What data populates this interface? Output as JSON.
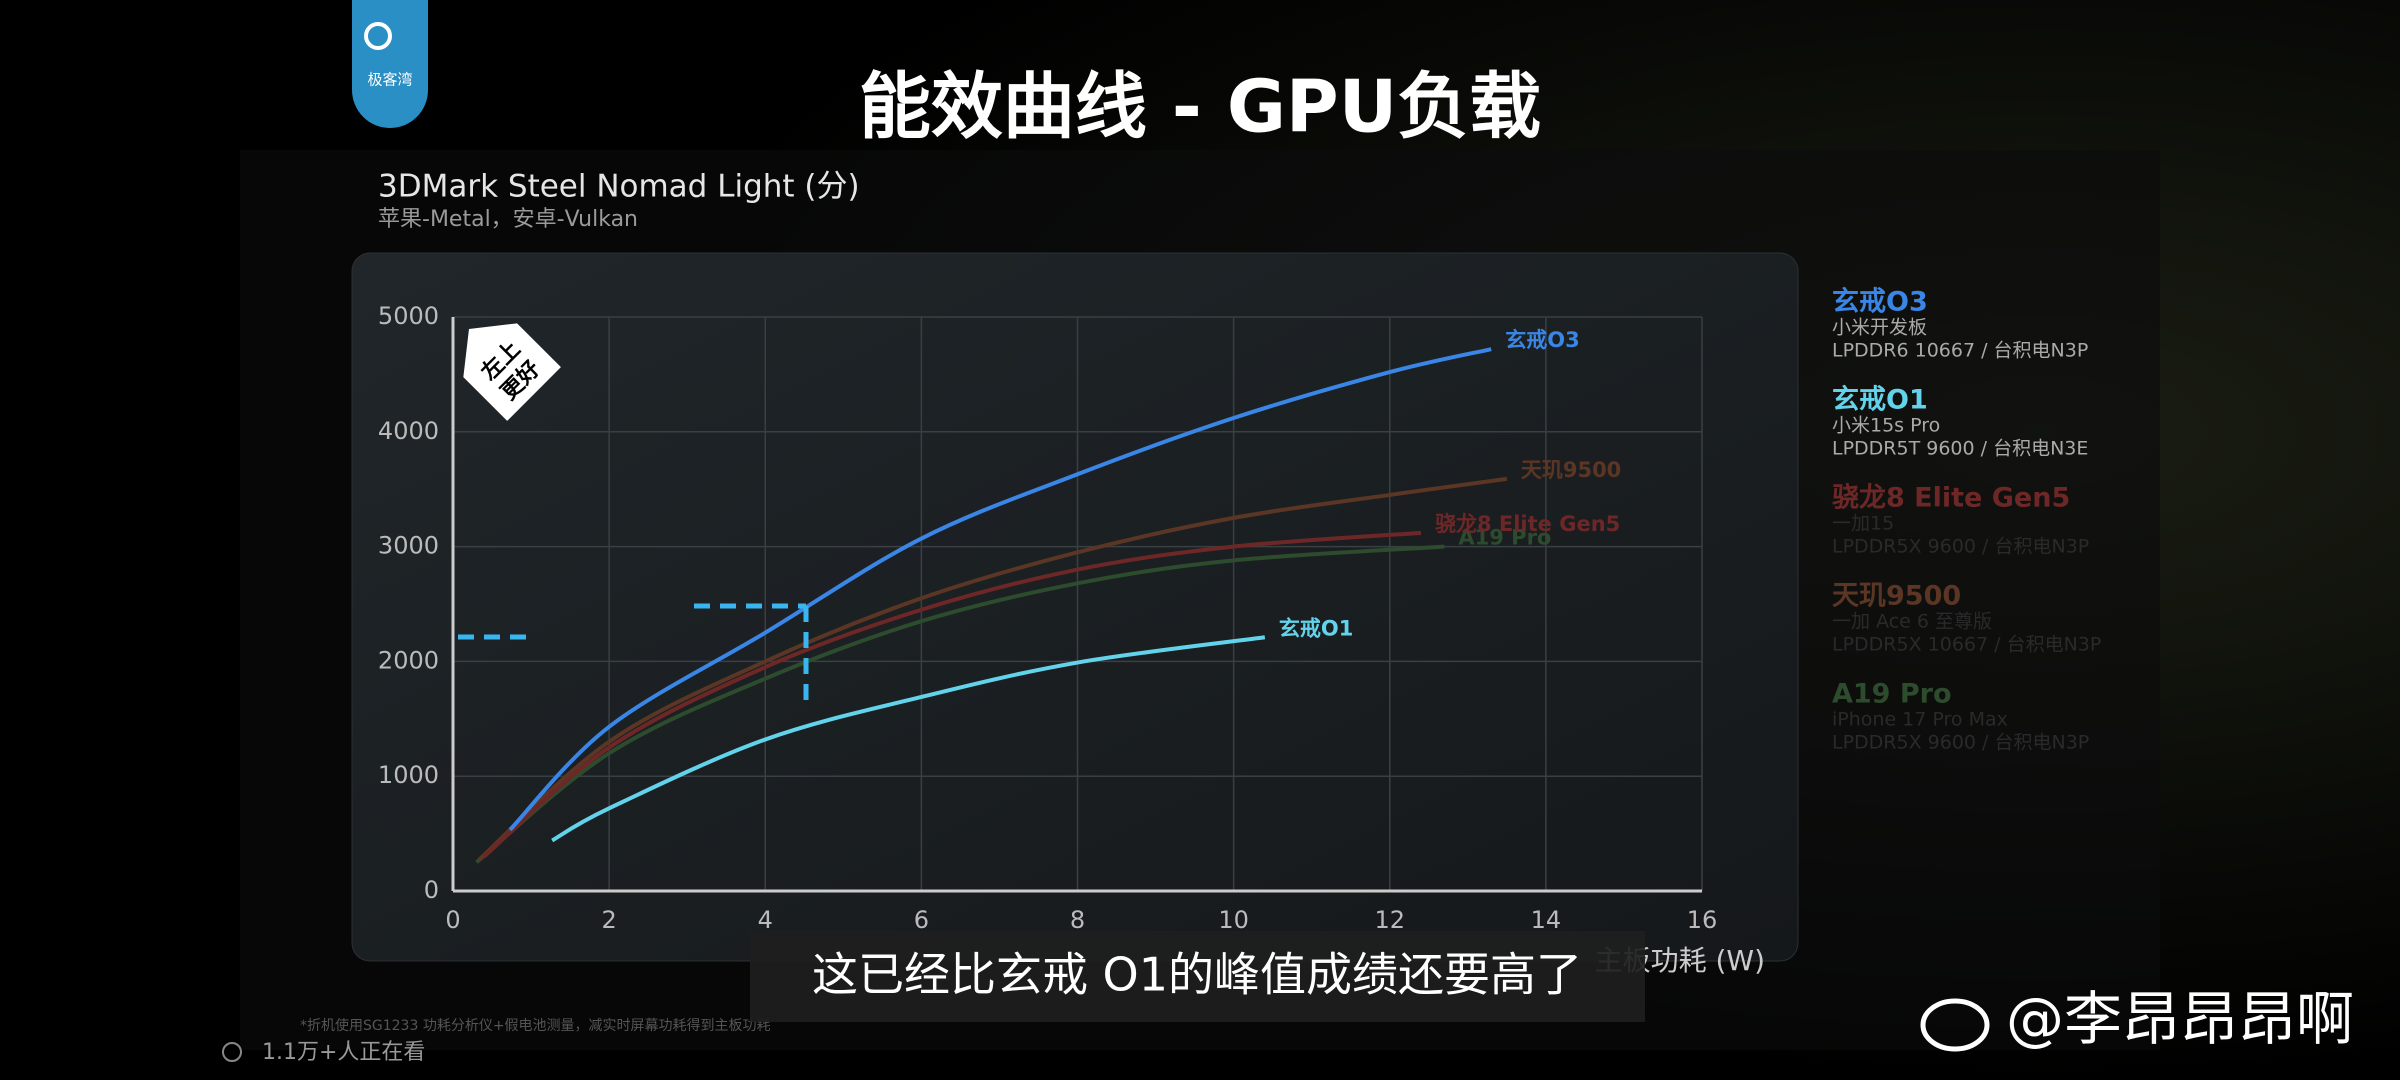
{
  "header": {
    "logo": "极客湾",
    "title": "能效曲线 - GPU负载"
  },
  "chart_data": {
    "type": "line",
    "title": "3DMark Steel Nomad Light (分)",
    "subtitle": "苹果-Metal，安卓-Vulkan",
    "xlabel": "主板功耗 (W)",
    "badge": [
      "左上",
      "更好"
    ],
    "xlim": [
      0,
      16
    ],
    "xticks": [
      0,
      2,
      4,
      6,
      8,
      10,
      12,
      14,
      16
    ],
    "ylim": [
      0,
      5000
    ],
    "yticks": [
      0,
      1000,
      2000,
      3000,
      4000,
      5000
    ],
    "grid": true,
    "series": [
      {
        "name": "玄戒O3",
        "color": "#3a86e6",
        "device": "小米开发板",
        "spec": "LPDDR6 10667 / 台积电N3P",
        "x": [
          0.73,
          2,
          4,
          6,
          8,
          10,
          12,
          13.3
        ],
        "values": [
          533,
          1430,
          2250,
          3070,
          3630,
          4120,
          4520,
          4720
        ]
      },
      {
        "name": "玄戒O1",
        "color": "#62d3ea",
        "device": "小米15s Pro",
        "spec": "LPDDR5T 9600 / 台积电N3E",
        "x": [
          1.27,
          2,
          4,
          6,
          8,
          10.4
        ],
        "values": [
          440,
          720,
          1320,
          1690,
          1990,
          2210
        ]
      },
      {
        "name": "骁龙8 Elite Gen5",
        "color": "#6e2727",
        "device": "一加15",
        "spec": "LPDDR5X 9600 / 台积电N3P",
        "x": [
          0.4,
          2,
          4,
          6,
          8,
          10,
          12.4
        ],
        "values": [
          300,
          1250,
          1950,
          2450,
          2800,
          3000,
          3120
        ]
      },
      {
        "name": "天玑9500",
        "color": "#5c3624",
        "device": "一加 Ace 6 至尊版",
        "spec": "LPDDR5X 10667 / 台积电N3P",
        "x": [
          0.33,
          2,
          4,
          6,
          8,
          10,
          12,
          13.5
        ],
        "values": [
          270,
          1300,
          2000,
          2550,
          2950,
          3250,
          3450,
          3590
        ]
      },
      {
        "name": "A19 Pro",
        "color": "#2d4b2d",
        "device": "iPhone 17 Pro Max",
        "spec": "LPDDR5X 9600 / 台积电N3P",
        "x": [
          0.3,
          2,
          4,
          6,
          8,
          10,
          12.7
        ],
        "values": [
          250,
          1200,
          1850,
          2350,
          2680,
          2880,
          3000
        ]
      }
    ]
  },
  "overlay": {
    "caption": "这已经比玄戒 O1的峰值成绩还要高了",
    "watermark": "@李昂昂昂啊",
    "footnote": "*折机使用SG1233 功耗分析仪+假电池测量，减实时屏幕功耗得到主板功耗",
    "viewers": "1.1万+人正在看"
  }
}
